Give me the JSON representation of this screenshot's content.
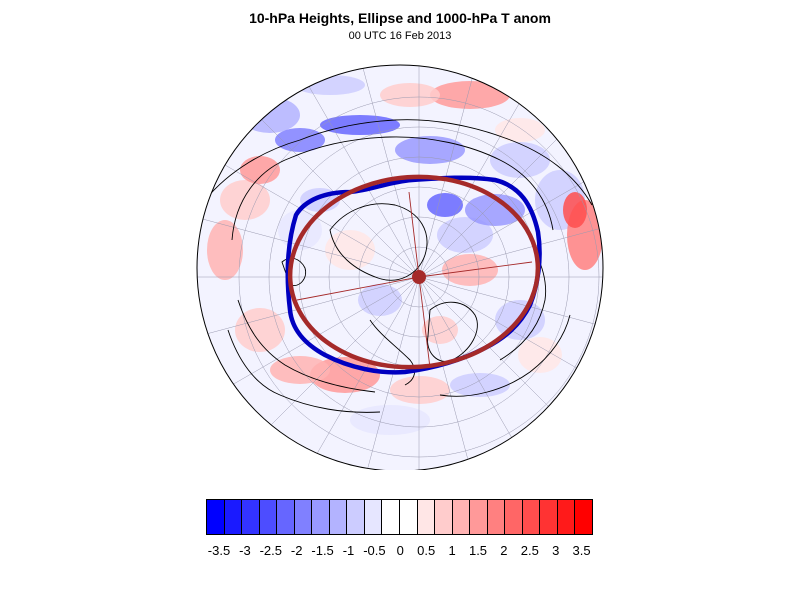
{
  "title": "10-hPa Heights, Ellipse and 1000-hPa T anom",
  "subtitle": "00 UTC 16 Feb 2013",
  "map": {
    "projection": "polar-stereographic-northern-hemisphere",
    "field": "1000-hPa temperature anomaly shading",
    "overlays": [
      {
        "name": "10-hPa height contour",
        "color": "#0000c0"
      },
      {
        "name": "fitted ellipse",
        "color": "#a52a2a"
      },
      {
        "name": "coastlines",
        "color": "#000000"
      }
    ]
  },
  "colorbar": {
    "colors": [
      "#0000ff",
      "#1a1aff",
      "#3333ff",
      "#4d4dff",
      "#6666ff",
      "#8080ff",
      "#9999ff",
      "#b3b3ff",
      "#ccccff",
      "#e6e6ff",
      "#ffffff",
      "#ffffff",
      "#ffe6e6",
      "#ffcccc",
      "#ffb3b3",
      "#ff9999",
      "#ff8080",
      "#ff6666",
      "#ff4d4d",
      "#ff3333",
      "#ff1a1a",
      "#ff0000"
    ],
    "labels": [
      "-3.5",
      "-3",
      "-2.5",
      "-2",
      "-1.5",
      "-1",
      "-0.5",
      "0",
      "0.5",
      "1",
      "1.5",
      "2",
      "2.5",
      "3",
      "3.5"
    ]
  }
}
